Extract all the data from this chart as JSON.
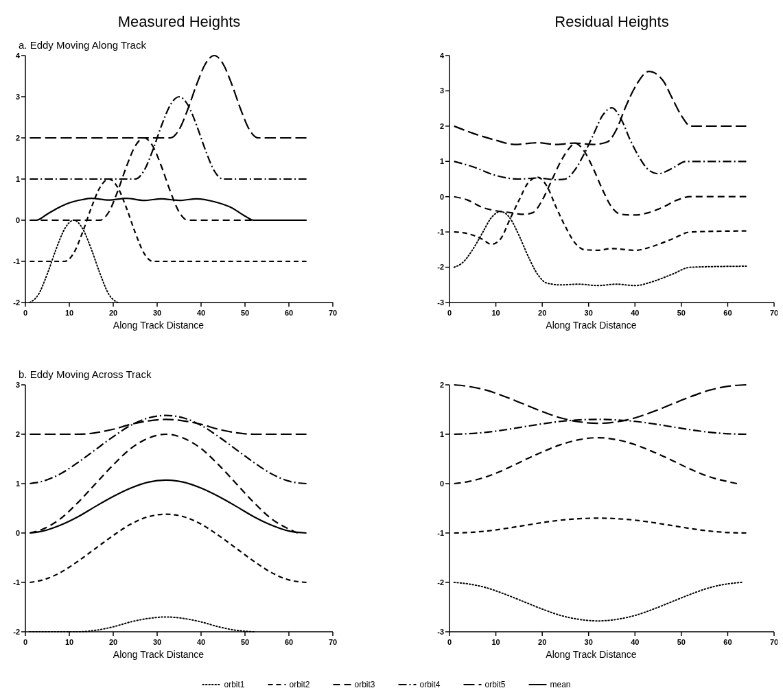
{
  "chart_data": [
    {
      "type": "line",
      "title": "Measured Heights",
      "subtitle": "a. Eddy Moving Along Track",
      "xlabel": "Along Track Distance",
      "xlim": [
        0,
        70
      ],
      "xticks": [
        0,
        10,
        20,
        30,
        40,
        50,
        60,
        70
      ],
      "ylim": [
        -2,
        4
      ],
      "yticks": [
        -2,
        -1,
        0,
        1,
        2,
        3,
        4
      ],
      "series": [
        {
          "color": "#000000",
          "line_style": "dotted",
          "x": [
            1,
            3,
            5,
            7,
            9,
            11,
            13,
            15,
            17,
            19,
            21
          ],
          "values": [
            -2,
            -1.8,
            -1.3,
            -0.7,
            -0.2,
            0,
            -0.2,
            -0.7,
            -1.3,
            -1.8,
            -2
          ]
        },
        {
          "color": "#000000",
          "line_style": "dashed",
          "x": [
            1,
            9,
            11,
            13,
            15,
            17,
            19,
            21,
            23,
            25,
            27,
            29,
            64
          ],
          "values": [
            -1,
            -1,
            -0.8,
            -0.3,
            0.3,
            0.8,
            1,
            0.8,
            0.3,
            -0.3,
            -0.8,
            -1,
            -1
          ]
        },
        {
          "color": "#000000",
          "line_style": "dashed",
          "x": [
            1,
            17,
            19,
            21,
            23,
            25,
            27,
            29,
            31,
            33,
            35,
            37,
            64
          ],
          "values": [
            0,
            0,
            0.2,
            0.7,
            1.3,
            1.8,
            2,
            1.8,
            1.3,
            0.7,
            0.2,
            0,
            0
          ]
        },
        {
          "color": "#000000",
          "line_style": "dashed",
          "x": [
            1,
            25,
            27,
            29,
            31,
            33,
            35,
            37,
            39,
            41,
            43,
            45,
            64
          ],
          "values": [
            1,
            1,
            1.2,
            1.7,
            2.3,
            2.8,
            3,
            2.8,
            2.3,
            1.7,
            1.2,
            1,
            1
          ]
        },
        {
          "color": "#000000",
          "line_style": "dashed",
          "x": [
            1,
            33,
            35,
            37,
            39,
            41,
            43,
            45,
            47,
            49,
            51,
            53,
            64
          ],
          "values": [
            2,
            2,
            2.2,
            2.7,
            3.3,
            3.8,
            4,
            3.8,
            3.3,
            2.7,
            2.2,
            2,
            2
          ]
        },
        {
          "color": "#000000",
          "line_style": "solid",
          "x": [
            1,
            2.5,
            5,
            8,
            10,
            13,
            15,
            19,
            23,
            27,
            31,
            35,
            39,
            43,
            47,
            50,
            52,
            64
          ],
          "values": [
            0,
            0,
            0.15,
            0.33,
            0.42,
            0.5,
            0.53,
            0.49,
            0.53,
            0.48,
            0.52,
            0.48,
            0.52,
            0.45,
            0.3,
            0.1,
            0,
            0
          ]
        }
      ]
    },
    {
      "type": "line",
      "title": "Residual Heights",
      "xlabel": "Along Track Distance",
      "xlim": [
        0,
        70
      ],
      "xticks": [
        0,
        10,
        20,
        30,
        40,
        50,
        60,
        70
      ],
      "ylim": [
        -3,
        4
      ],
      "yticks": [
        -3,
        -2,
        -1,
        0,
        1,
        2,
        3,
        4
      ],
      "series": [
        {
          "color": "#000000",
          "line_style": "dotted",
          "x": [
            1,
            3,
            5,
            7,
            9,
            11,
            13,
            15,
            17,
            19,
            21,
            24,
            28,
            32,
            36,
            40,
            44,
            48,
            52,
            64
          ],
          "values": [
            -2,
            -1.85,
            -1.5,
            -1.05,
            -0.6,
            -0.42,
            -0.6,
            -1.1,
            -1.7,
            -2.2,
            -2.45,
            -2.5,
            -2.48,
            -2.52,
            -2.48,
            -2.52,
            -2.4,
            -2.2,
            -2,
            -1.97
          ]
        },
        {
          "color": "#000000",
          "line_style": "dashed",
          "x": [
            1,
            4,
            7,
            9,
            11,
            13,
            15,
            17,
            19,
            21,
            23,
            25,
            27,
            29,
            32,
            35,
            40,
            44,
            48,
            52,
            64
          ],
          "values": [
            -1,
            -1.05,
            -1.2,
            -1.35,
            -1.2,
            -0.65,
            -0.1,
            0.4,
            0.55,
            0.3,
            -0.3,
            -0.85,
            -1.3,
            -1.5,
            -1.52,
            -1.47,
            -1.52,
            -1.4,
            -1.2,
            -1,
            -0.97
          ]
        },
        {
          "color": "#000000",
          "line_style": "dashed",
          "x": [
            1,
            4,
            7,
            10,
            13,
            16,
            18,
            20,
            22,
            24,
            26,
            27,
            29,
            31,
            33,
            35,
            37,
            40,
            43,
            46,
            49,
            52,
            64
          ],
          "values": [
            0,
            -0.1,
            -0.3,
            -0.4,
            -0.45,
            -0.5,
            -0.45,
            -0.1,
            0.45,
            1,
            1.4,
            1.52,
            1.3,
            0.8,
            0.2,
            -0.3,
            -0.5,
            -0.52,
            -0.45,
            -0.3,
            -0.1,
            0,
            0
          ]
        },
        {
          "color": "#000000",
          "line_style": "dashed",
          "x": [
            1,
            5,
            10,
            15,
            19,
            23,
            25,
            27,
            29,
            31,
            33,
            35,
            37,
            39,
            41,
            43,
            45,
            48,
            51,
            64
          ],
          "values": [
            1,
            0.85,
            0.6,
            0.5,
            0.53,
            0.48,
            0.5,
            0.75,
            1.2,
            1.75,
            2.3,
            2.52,
            2.2,
            1.6,
            1.1,
            0.75,
            0.65,
            0.8,
            1,
            1
          ]
        },
        {
          "color": "#000000",
          "line_style": "dashed",
          "x": [
            1,
            5,
            10,
            14,
            19,
            23,
            27,
            31,
            34,
            36,
            38,
            40,
            43,
            46,
            48,
            50,
            52,
            64
          ],
          "values": [
            2,
            1.8,
            1.6,
            1.48,
            1.53,
            1.48,
            1.52,
            1.48,
            1.55,
            1.9,
            2.55,
            3.1,
            3.55,
            3.3,
            2.8,
            2.3,
            2,
            2
          ]
        }
      ]
    },
    {
      "type": "line",
      "subtitle": "b. Eddy Moving Across Track",
      "xlabel": "Along Track Distance",
      "xlim": [
        0,
        70
      ],
      "xticks": [
        0,
        10,
        20,
        30,
        40,
        50,
        60,
        70
      ],
      "ylim": [
        -2,
        3
      ],
      "yticks": [
        -2,
        -1,
        0,
        1,
        2,
        3
      ],
      "legend": "bottom",
      "series": [
        {
          "name": "orbit1",
          "color": "#000000",
          "line_style": "dotted",
          "x": [
            1,
            12,
            16,
            20,
            24,
            28,
            32,
            36,
            40,
            44,
            48,
            52
          ],
          "values": [
            -2,
            -2,
            -1.97,
            -1.9,
            -1.8,
            -1.73,
            -1.7,
            -1.73,
            -1.8,
            -1.9,
            -1.97,
            -2
          ]
        },
        {
          "name": "orbit2",
          "color": "#000000",
          "line_style": "dashed",
          "x": [
            1,
            4,
            8,
            12,
            16,
            20,
            24,
            28,
            32,
            36,
            40,
            44,
            48,
            52,
            56,
            60,
            64
          ],
          "values": [
            -1,
            -0.95,
            -0.8,
            -0.57,
            -0.31,
            -0.05,
            0.18,
            0.33,
            0.38,
            0.33,
            0.18,
            -0.05,
            -0.31,
            -0.57,
            -0.8,
            -0.95,
            -1
          ]
        },
        {
          "name": "orbit3",
          "color": "#000000",
          "line_style": "dashed",
          "x": [
            1,
            4,
            8,
            12,
            16,
            20,
            24,
            28,
            32,
            36,
            40,
            44,
            48,
            52,
            56,
            60,
            62
          ],
          "values": [
            0,
            0.08,
            0.29,
            0.62,
            1,
            1.38,
            1.71,
            1.92,
            2,
            1.92,
            1.71,
            1.38,
            1,
            0.62,
            0.29,
            0.08,
            0
          ]
        },
        {
          "name": "orbit4",
          "color": "#000000",
          "line_style": "dashed",
          "x": [
            1,
            4,
            8,
            12,
            16,
            20,
            24,
            28,
            32,
            36,
            40,
            44,
            48,
            52,
            56,
            60,
            64
          ],
          "values": [
            1,
            1.05,
            1.2,
            1.43,
            1.69,
            1.95,
            2.18,
            2.33,
            2.38,
            2.33,
            2.18,
            1.95,
            1.69,
            1.43,
            1.2,
            1.05,
            1
          ]
        },
        {
          "name": "orbit5",
          "color": "#000000",
          "line_style": "dashed",
          "x": [
            1,
            12,
            16,
            20,
            24,
            28,
            32,
            36,
            40,
            44,
            48,
            52,
            64
          ],
          "values": [
            2,
            2,
            2.03,
            2.1,
            2.2,
            2.27,
            2.3,
            2.27,
            2.2,
            2.1,
            2.03,
            2,
            2
          ]
        },
        {
          "name": "mean",
          "color": "#000000",
          "line_style": "solid",
          "x": [
            1,
            4,
            8,
            12,
            16,
            20,
            24,
            28,
            32,
            36,
            40,
            44,
            48,
            52,
            56,
            60,
            64
          ],
          "values": [
            0,
            0.04,
            0.16,
            0.33,
            0.54,
            0.74,
            0.91,
            1.03,
            1.07,
            1.03,
            0.91,
            0.74,
            0.54,
            0.33,
            0.16,
            0.04,
            0
          ]
        }
      ]
    },
    {
      "type": "line",
      "xlabel": "Along Track Distance",
      "xlim": [
        0,
        70
      ],
      "xticks": [
        0,
        10,
        20,
        30,
        40,
        50,
        60,
        70
      ],
      "ylim": [
        -3,
        2
      ],
      "yticks": [
        -3,
        -2,
        -1,
        0,
        1,
        2
      ],
      "series": [
        {
          "color": "#000000",
          "line_style": "dotted",
          "x": [
            1,
            4,
            8,
            12,
            16,
            20,
            24,
            28,
            32,
            36,
            40,
            44,
            48,
            52,
            56,
            60,
            63
          ],
          "values": [
            -2,
            -2.03,
            -2.11,
            -2.24,
            -2.39,
            -2.54,
            -2.67,
            -2.75,
            -2.78,
            -2.75,
            -2.67,
            -2.54,
            -2.39,
            -2.24,
            -2.11,
            -2.03,
            -2
          ]
        },
        {
          "color": "#000000",
          "line_style": "dashed",
          "x": [
            1,
            4,
            8,
            12,
            16,
            20,
            24,
            28,
            32,
            36,
            40,
            44,
            48,
            52,
            56,
            60,
            64
          ],
          "values": [
            -1,
            -0.99,
            -0.96,
            -0.91,
            -0.85,
            -0.79,
            -0.74,
            -0.71,
            -0.7,
            -0.71,
            -0.74,
            -0.79,
            -0.85,
            -0.91,
            -0.96,
            -0.99,
            -1
          ]
        },
        {
          "color": "#000000",
          "line_style": "dashed",
          "x": [
            1,
            4,
            8,
            12,
            16,
            20,
            24,
            28,
            32,
            36,
            40,
            44,
            48,
            52,
            56,
            60,
            62
          ],
          "values": [
            0,
            0.04,
            0.14,
            0.29,
            0.47,
            0.64,
            0.79,
            0.89,
            0.93,
            0.89,
            0.79,
            0.64,
            0.47,
            0.29,
            0.14,
            0.04,
            0
          ]
        },
        {
          "color": "#000000",
          "line_style": "dashed",
          "x": [
            1,
            4,
            8,
            12,
            16,
            20,
            24,
            28,
            32,
            36,
            40,
            44,
            48,
            52,
            56,
            60,
            64
          ],
          "values": [
            1,
            1.01,
            1.04,
            1.09,
            1.15,
            1.21,
            1.26,
            1.29,
            1.3,
            1.29,
            1.26,
            1.21,
            1.15,
            1.09,
            1.04,
            1.01,
            1
          ]
        },
        {
          "color": "#000000",
          "line_style": "dashed",
          "x": [
            1,
            4,
            8,
            12,
            16,
            20,
            24,
            28,
            32,
            36,
            40,
            44,
            48,
            52,
            56,
            60,
            64
          ],
          "values": [
            2,
            1.97,
            1.89,
            1.76,
            1.61,
            1.46,
            1.33,
            1.25,
            1.22,
            1.25,
            1.33,
            1.46,
            1.61,
            1.76,
            1.89,
            1.97,
            2
          ]
        }
      ]
    }
  ]
}
